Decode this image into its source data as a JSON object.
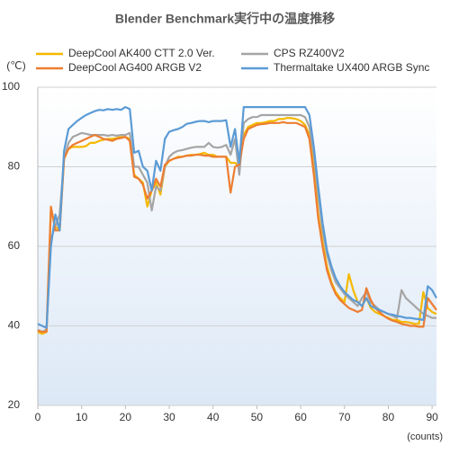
{
  "chart_data": {
    "type": "line",
    "title": "Blender Benchmark実行中の温度推移",
    "ylabel": "(℃)",
    "xlabel": "(counts)",
    "x": [
      0,
      1,
      2,
      3,
      4,
      5,
      6,
      7,
      8,
      9,
      10,
      11,
      12,
      13,
      14,
      15,
      16,
      17,
      18,
      19,
      20,
      21,
      22,
      23,
      24,
      25,
      26,
      27,
      28,
      29,
      30,
      31,
      32,
      33,
      34,
      35,
      36,
      37,
      38,
      39,
      40,
      41,
      42,
      43,
      44,
      45,
      46,
      47,
      48,
      49,
      50,
      51,
      52,
      53,
      54,
      55,
      56,
      57,
      58,
      59,
      60,
      61,
      62,
      63,
      64,
      65,
      66,
      67,
      68,
      69,
      70,
      71,
      72,
      73,
      74,
      75,
      76,
      77,
      78,
      79,
      80,
      81,
      82,
      83,
      84,
      85,
      86,
      87,
      88,
      89,
      90,
      91
    ],
    "series": [
      {
        "name": "DeepCool  AK400 CTT 2.0 Ver.",
        "color": "#f5b800",
        "values": [
          38.5,
          38,
          38.5,
          69.5,
          65,
          64,
          82,
          84.5,
          85,
          85,
          85,
          85.2,
          86,
          86,
          86.5,
          86.8,
          87,
          87,
          87.2,
          87.5,
          87.5,
          87,
          78,
          77,
          76,
          70,
          74,
          76,
          73,
          80,
          81.5,
          82,
          82.5,
          82.5,
          82.8,
          83,
          83,
          83.2,
          83.5,
          83,
          83,
          82.5,
          82.5,
          82.5,
          81,
          81,
          80,
          88,
          90,
          90.5,
          91,
          91,
          91.2,
          91.5,
          91.5,
          92,
          92,
          92.3,
          92.2,
          92,
          91.5,
          90.5,
          88,
          80,
          68,
          61,
          55,
          51,
          48.5,
          47,
          46,
          53,
          49,
          46,
          45,
          47,
          44.5,
          43.5,
          43,
          42.5,
          42,
          41.5,
          41.5,
          41,
          41,
          40.8,
          40.5,
          40.5,
          48.5,
          44.5,
          43.5,
          43
        ]
      },
      {
        "name": "CPS RZ400V2",
        "color": "#a5a5a5",
        "values": [
          39,
          38.5,
          39,
          62,
          65,
          68,
          82,
          86,
          87.5,
          88,
          88.5,
          88.3,
          88,
          88,
          88,
          88,
          87.8,
          88,
          87.8,
          88,
          88,
          88.5,
          80,
          80,
          78,
          76,
          69,
          75,
          74,
          80,
          82.5,
          83.5,
          84,
          84.2,
          84.5,
          84.8,
          85,
          85,
          85,
          86,
          85,
          84.8,
          85,
          85.5,
          83,
          87,
          78,
          91,
          92,
          92.5,
          92.5,
          93,
          93,
          93,
          93,
          93,
          93,
          93,
          93,
          93,
          93,
          92.5,
          90,
          83,
          73,
          64,
          58,
          54,
          51,
          49.5,
          48,
          47,
          46,
          45,
          47,
          48.5,
          46,
          45,
          44,
          43.5,
          43,
          42.5,
          42,
          49,
          47,
          46,
          45,
          44,
          43,
          42.5,
          42,
          42
        ]
      },
      {
        "name": "DeepCool  AG400 ARGB V2",
        "color": "#ed7d31",
        "values": [
          38.8,
          38.5,
          38.5,
          70,
          64,
          64,
          82,
          84.5,
          85.5,
          86,
          86.5,
          87,
          87.5,
          88,
          87.5,
          87,
          86.8,
          86.5,
          87,
          87.2,
          87.5,
          86.5,
          77.5,
          77,
          75.5,
          72,
          74,
          77,
          75,
          80.5,
          81.5,
          82,
          82.3,
          82.5,
          82.8,
          82.8,
          83,
          83,
          82.8,
          82.8,
          82.5,
          82.5,
          82.5,
          82.5,
          73.5,
          80,
          80.5,
          87,
          89.5,
          90,
          90.5,
          90.7,
          90.8,
          91,
          91,
          91,
          91.2,
          91,
          91,
          91,
          90.5,
          90,
          87,
          78,
          67,
          60,
          54,
          50.5,
          48,
          46.5,
          45.5,
          44.5,
          44,
          43.5,
          44,
          49.5,
          46.5,
          44.5,
          43.5,
          42.5,
          41.8,
          41.3,
          41,
          40.5,
          40.3,
          40,
          40,
          39.8,
          39.8,
          47,
          45.5,
          44
        ]
      },
      {
        "name": "Thermaltake UX400 ARGB Sync",
        "color": "#5b9bd5",
        "values": [
          40.5,
          40,
          39.5,
          60,
          68,
          64,
          84,
          89.5,
          90.5,
          91.5,
          92.3,
          93,
          93.5,
          94,
          94.3,
          94.2,
          94.5,
          94.3,
          94.5,
          94.3,
          95,
          94.5,
          83.5,
          84,
          80,
          79,
          74,
          81.5,
          79,
          87,
          88.8,
          89.2,
          89.5,
          90,
          90.8,
          91,
          91.3,
          91.5,
          91.5,
          91.2,
          91.5,
          91.5,
          91.5,
          91.7,
          85,
          89.5,
          81,
          95,
          95,
          95,
          95,
          95,
          95,
          95,
          95,
          95,
          95,
          95,
          95,
          95,
          95,
          95,
          93,
          85,
          75,
          66,
          59,
          55,
          52,
          50,
          48.5,
          47.5,
          46.5,
          46,
          45,
          47,
          45,
          44.5,
          44,
          43.5,
          43,
          42.8,
          42.5,
          42.3,
          42,
          42,
          41.8,
          41.7,
          41.5,
          50,
          49,
          47
        ]
      }
    ],
    "xlim": [
      0,
      91
    ],
    "ylim": [
      20,
      100
    ],
    "xticks": [
      0,
      10,
      20,
      30,
      40,
      50,
      60,
      70,
      80,
      90
    ],
    "yticks": [
      20,
      40,
      60,
      80,
      100
    ],
    "grid": true
  }
}
